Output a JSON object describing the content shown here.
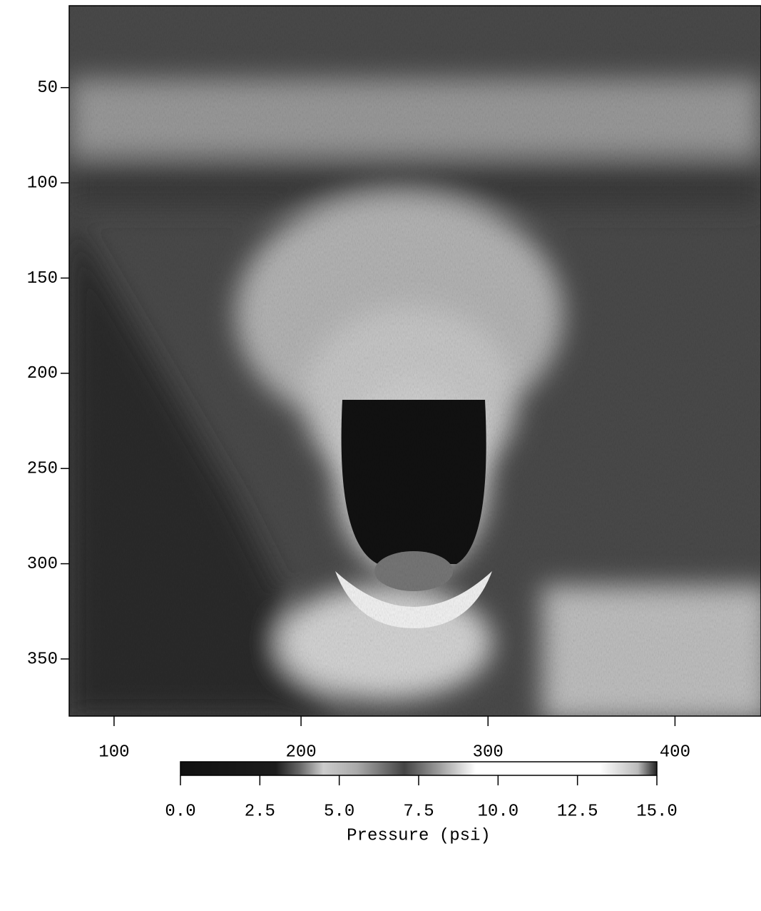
{
  "chart_data": {
    "type": "heatmap",
    "xlim": [
      76,
      446
    ],
    "xticks": [
      100,
      200,
      300,
      400
    ],
    "ylim": [
      380,
      7
    ],
    "yticks": [
      50,
      100,
      150,
      200,
      250,
      300,
      350
    ],
    "colorbar": {
      "label": "Pressure (psi)",
      "clim": [
        0,
        15
      ],
      "ticks": [
        {
          "value": 0,
          "label": "0.0"
        },
        {
          "value": 2.5,
          "label": "2.5"
        },
        {
          "value": 5,
          "label": "5.0"
        },
        {
          "value": 7.5,
          "label": "7.5"
        },
        {
          "value": 10,
          "label": "10.0"
        },
        {
          "value": 12.5,
          "label": "12.5"
        },
        {
          "value": 15,
          "label": "15.0"
        }
      ]
    }
  }
}
